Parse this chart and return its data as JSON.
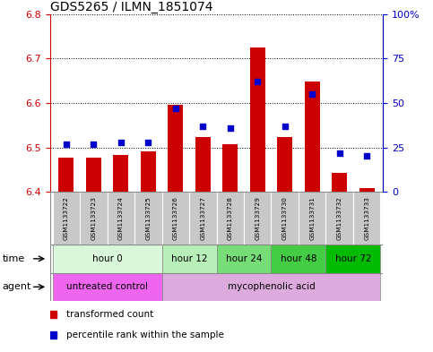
{
  "title": "GDS5265 / ILMN_1851074",
  "samples": [
    "GSM1133722",
    "GSM1133723",
    "GSM1133724",
    "GSM1133725",
    "GSM1133726",
    "GSM1133727",
    "GSM1133728",
    "GSM1133729",
    "GSM1133730",
    "GSM1133731",
    "GSM1133732",
    "GSM1133733"
  ],
  "transformed_count": [
    6.477,
    6.477,
    6.482,
    6.492,
    6.595,
    6.523,
    6.508,
    6.725,
    6.523,
    6.648,
    6.443,
    6.408
  ],
  "percentile_rank": [
    27,
    27,
    28,
    28,
    47,
    37,
    36,
    62,
    37,
    55,
    22,
    20
  ],
  "ylim_left": [
    6.4,
    6.8
  ],
  "ylim_right": [
    0,
    100
  ],
  "yticks_left": [
    6.4,
    6.5,
    6.6,
    6.7,
    6.8
  ],
  "yticks_right": [
    0,
    25,
    50,
    75,
    100
  ],
  "ytick_labels_right": [
    "0",
    "25",
    "50",
    "75",
    "100%"
  ],
  "bar_bottom": 6.4,
  "bar_color": "#cc0000",
  "dot_color": "#0000cc",
  "time_groups": [
    {
      "label": "hour 0",
      "indices": [
        0,
        1,
        2,
        3
      ],
      "color": "#d9f7d9"
    },
    {
      "label": "hour 12",
      "indices": [
        4,
        5
      ],
      "color": "#b8eeb8"
    },
    {
      "label": "hour 24",
      "indices": [
        6,
        7
      ],
      "color": "#77dd77"
    },
    {
      "label": "hour 48",
      "indices": [
        8,
        9
      ],
      "color": "#44cc44"
    },
    {
      "label": "hour 72",
      "indices": [
        10,
        11
      ],
      "color": "#00bb00"
    }
  ],
  "agent_groups": [
    {
      "label": "untreated control",
      "indices": [
        0,
        1,
        2,
        3
      ],
      "color": "#ee66ee"
    },
    {
      "label": "mycophenolic acid",
      "indices": [
        4,
        5,
        6,
        7,
        8,
        9,
        10,
        11
      ],
      "color": "#ddaadd"
    }
  ],
  "legend_items": [
    {
      "label": "transformed count",
      "color": "#cc0000"
    },
    {
      "label": "percentile rank within the sample",
      "color": "#0000cc"
    }
  ],
  "left_tick_color": "#cc0000",
  "right_tick_color": "#0000cc",
  "bg_sample_labels": "#c8c8c8",
  "border_color": "#888888"
}
